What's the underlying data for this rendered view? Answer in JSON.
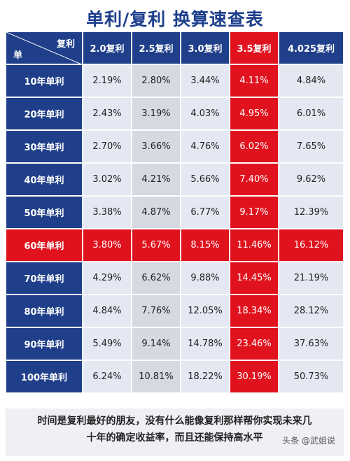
{
  "title": "单利/复利 换算速查表",
  "header": {
    "corner_top": "复利",
    "corner_bottom": "单",
    "columns": [
      "2.0复利",
      "2.5复利",
      "3.0复利",
      "3.5复利",
      "4.025复利"
    ]
  },
  "rows": [
    {
      "label": "10年单利",
      "values": [
        "2.19%",
        "2.80%",
        "3.44%",
        "4.11%",
        "4.84%"
      ]
    },
    {
      "label": "20年单利",
      "values": [
        "2.43%",
        "3.19%",
        "4.03%",
        "4.95%",
        "6.01%"
      ]
    },
    {
      "label": "30年单利",
      "values": [
        "2.70%",
        "3.66%",
        "4.76%",
        "6.02%",
        "7.65%"
      ]
    },
    {
      "label": "40年单利",
      "values": [
        "3.02%",
        "4.21%",
        "5.66%",
        "7.40%",
        "9.62%"
      ]
    },
    {
      "label": "50年单利",
      "values": [
        "3.38%",
        "4.87%",
        "6.77%",
        "9.17%",
        "12.39%"
      ]
    },
    {
      "label": "60年单利",
      "values": [
        "3.80%",
        "5.67%",
        "8.15%",
        "11.46%",
        "16.12%"
      ]
    },
    {
      "label": "70年单利",
      "values": [
        "4.29%",
        "6.62%",
        "9.88%",
        "14.45%",
        "21.19%"
      ]
    },
    {
      "label": "80年单利",
      "values": [
        "4.84%",
        "7.76%",
        "12.05%",
        "18.34%",
        "28.12%"
      ]
    },
    {
      "label": "90年单利",
      "values": [
        "5.49%",
        "9.14%",
        "14.78%",
        "23.46%",
        "37.63%"
      ]
    },
    {
      "label": "100年单利",
      "values": [
        "6.24%",
        "10.81%",
        "18.22%",
        "30.19%",
        "50.73%"
      ]
    }
  ],
  "highlight_row_index": 5,
  "highlight_col_index": 3,
  "footer": {
    "line1": "时间是复利最好的朋友，没有什么能像复利那样帮你实现未来几",
    "line2": "十年的确定收益率，而且还能保持高水平",
    "watermark": "头条 @武姐说"
  },
  "colors": {
    "navy": "#1f3f8a",
    "red": "#e0121e",
    "title": "#1e3f8c"
  }
}
